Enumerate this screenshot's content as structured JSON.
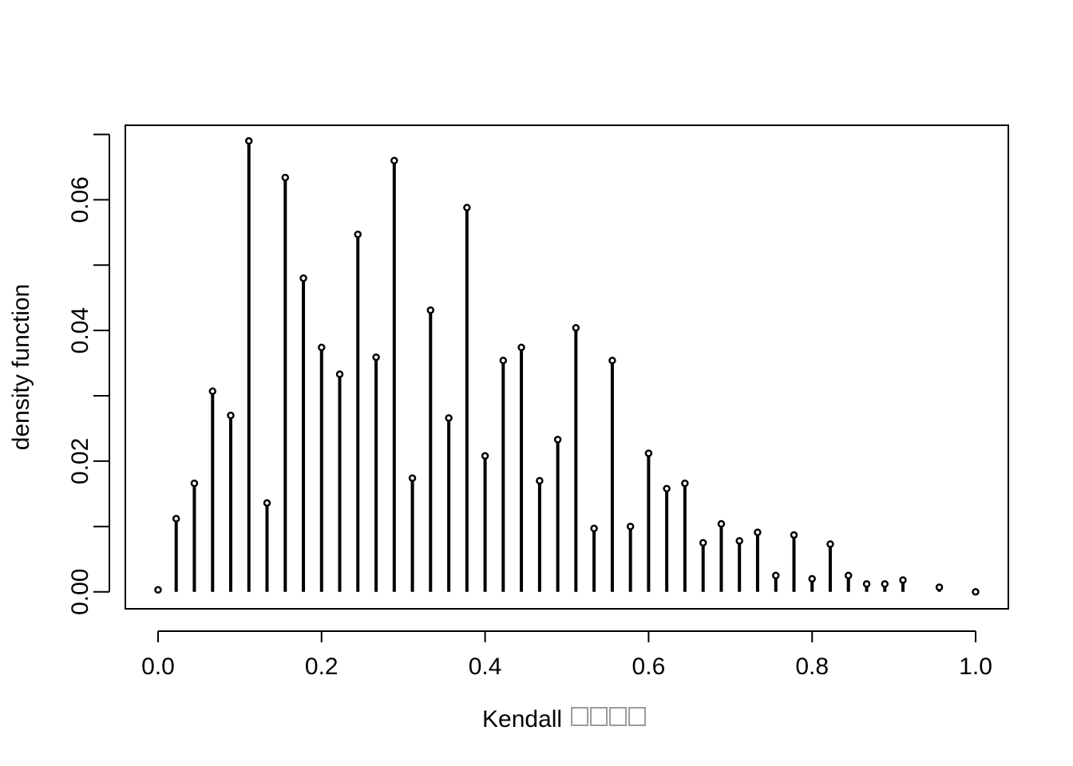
{
  "chart_data": {
    "type": "scatter",
    "style": "lollipop",
    "title": "",
    "xlabel": "Kendall",
    "xlabel_missing_glyphs": 4,
    "ylabel": "density function",
    "xlim": [
      -0.04,
      1.04
    ],
    "ylim": [
      -0.0026,
      0.0714
    ],
    "x_ticks": [
      0.0,
      0.2,
      0.4,
      0.6,
      0.8,
      1.0
    ],
    "x_tick_labels": [
      "0.0",
      "0.2",
      "0.4",
      "0.6",
      "0.8",
      "1.0"
    ],
    "y_ticks": [
      0.0,
      0.01,
      0.02,
      0.03,
      0.04,
      0.05,
      0.06,
      0.07
    ],
    "y_tick_labels": [
      "0.00",
      "",
      "0.02",
      "",
      "0.04",
      "",
      "0.06",
      ""
    ],
    "grid": false,
    "legend": "none",
    "line_color": "#000000",
    "x": [
      0.0,
      0.0222,
      0.0444,
      0.0667,
      0.0889,
      0.1111,
      0.1333,
      0.1556,
      0.1778,
      0.2,
      0.2222,
      0.2444,
      0.2667,
      0.2889,
      0.3111,
      0.3333,
      0.3556,
      0.3778,
      0.4,
      0.4222,
      0.4444,
      0.4667,
      0.4889,
      0.5111,
      0.5333,
      0.5556,
      0.5778,
      0.6,
      0.6222,
      0.6444,
      0.6667,
      0.6889,
      0.7111,
      0.7333,
      0.7556,
      0.7778,
      0.8,
      0.8222,
      0.8444,
      0.8667,
      0.8889,
      0.9111,
      0.9556,
      1.0
    ],
    "y": [
      0.0003,
      0.0112,
      0.0166,
      0.0307,
      0.027,
      0.069,
      0.0136,
      0.0634,
      0.048,
      0.0374,
      0.0333,
      0.0547,
      0.0359,
      0.066,
      0.0174,
      0.0431,
      0.0266,
      0.0588,
      0.0208,
      0.0354,
      0.0374,
      0.017,
      0.0233,
      0.0404,
      0.0097,
      0.0354,
      0.01,
      0.0212,
      0.0158,
      0.0166,
      0.0075,
      0.0104,
      0.0078,
      0.0091,
      0.0025,
      0.0087,
      0.002,
      0.0073,
      0.0025,
      0.0012,
      0.0012,
      0.0018,
      0.0007,
      0.0
    ]
  }
}
